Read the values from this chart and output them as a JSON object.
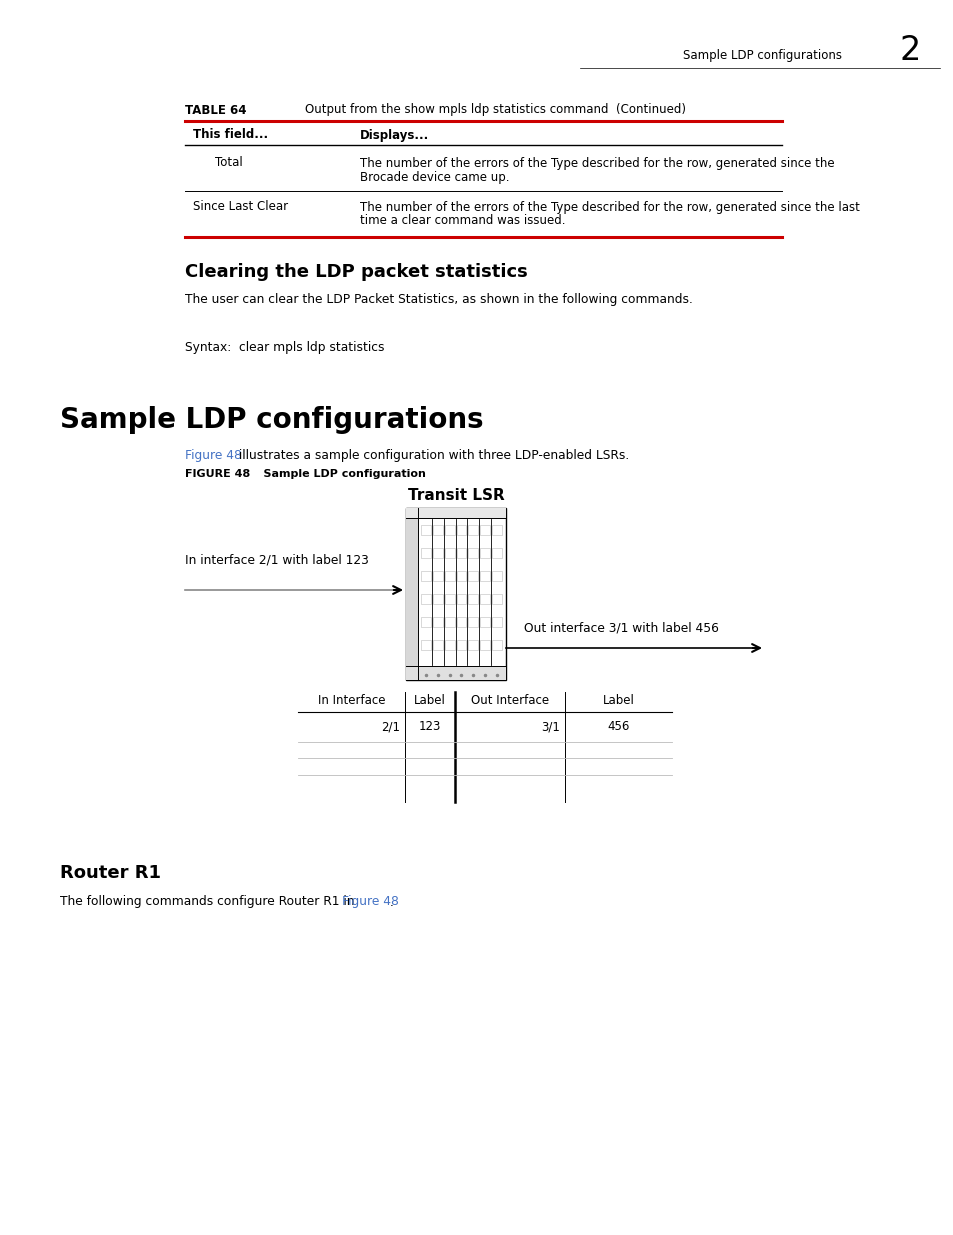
{
  "bg_color": "#ffffff",
  "page_header_text": "Sample LDP configurations",
  "page_number": "2",
  "table_label": "TABLE 64",
  "table_title": "Output from the show mpls ldp statistics command  (Continued)",
  "table_col1_header": "This field...",
  "table_col2_header": "Displays...",
  "table_row1_field": "Total",
  "table_row1_line1": "The number of the errors of the Type described for the row, generated since the",
  "table_row1_line2": "Brocade device came up.",
  "table_row2_field": "Since Last Clear",
  "table_row2_line1": "The number of the errors of the Type described for the row, generated since the last",
  "table_row2_line2": "time a clear command was issued.",
  "section1_title": "Clearing the LDP packet statistics",
  "section1_body": "The user can clear the LDP Packet Statistics, as shown in the following commands.",
  "syntax_text": "Syntax:  clear mpls ldp statistics",
  "section2_title": "Sample LDP configurations",
  "figure_ref_blue": "Figure 48",
  "figure_ref_rest": " illustrates a sample configuration with three LDP-enabled LSRs.",
  "figure_label": "FIGURE 48",
  "figure_caption": "    Sample LDP configuration",
  "transit_lsr_title": "Transit LSR",
  "in_label_text": "In interface 2/1 with label 123",
  "out_label_text": "Out interface 3/1 with label 456",
  "tbl2_h0": "In Interface",
  "tbl2_h1": "Label",
  "tbl2_h2": "Out Interface",
  "tbl2_h3": "Label",
  "tbl2_r0": "2/1",
  "tbl2_r1": "123",
  "tbl2_r2": "3/1",
  "tbl2_r3": "456",
  "section3_title": "Router R1",
  "section3_normal": "The following commands configure Router R1 in ",
  "section3_blue": "Figure 48",
  "section3_end": ".",
  "red_color": "#cc0000",
  "blue_color": "#4472c4",
  "black_color": "#000000",
  "gray_color": "#999999",
  "lgray": "#bbbbbb",
  "dgray": "#888888"
}
